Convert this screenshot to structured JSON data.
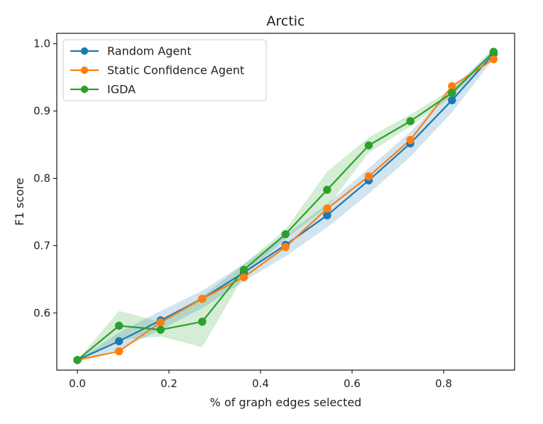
{
  "chart_data": {
    "type": "line",
    "title": "Arctic",
    "xlabel": "% of graph edges selected",
    "ylabel": "F1 score",
    "xlim": [
      -0.045,
      0.955
    ],
    "ylim": [
      0.515,
      1.0155
    ],
    "xticks": [
      0.0,
      0.2,
      0.4,
      0.6,
      0.8
    ],
    "xtick_labels": [
      "0.0",
      "0.2",
      "0.4",
      "0.6",
      "0.8"
    ],
    "yticks": [
      0.6,
      0.7,
      0.8,
      0.9,
      1.0
    ],
    "ytick_labels": [
      "0.6",
      "0.7",
      "0.8",
      "0.9",
      "1.0"
    ],
    "legend_position": "top-left",
    "grid": false,
    "x": [
      0.0,
      0.0909,
      0.1818,
      0.2727,
      0.3636,
      0.4545,
      0.5455,
      0.6364,
      0.7273,
      0.8182,
      0.9091
    ],
    "series": [
      {
        "name": "Random Agent",
        "color": "#1f77b4",
        "values": [
          0.53,
          0.558,
          0.589,
          0.621,
          0.66,
          0.701,
          0.745,
          0.797,
          0.852,
          0.916,
          0.985
        ],
        "band_lower": [
          0.53,
          0.545,
          0.575,
          0.607,
          0.647,
          0.684,
          0.727,
          0.777,
          0.832,
          0.898,
          0.978
        ],
        "band_upper": [
          0.53,
          0.571,
          0.603,
          0.633,
          0.673,
          0.716,
          0.762,
          0.815,
          0.869,
          0.932,
          0.991
        ]
      },
      {
        "name": "Static Confidence Agent",
        "color": "#ff7f0e",
        "values": [
          0.53,
          0.543,
          0.586,
          0.621,
          0.653,
          0.698,
          0.755,
          0.803,
          0.857,
          0.937,
          0.977
        ]
      },
      {
        "name": "IGDA",
        "color": "#2ca02c",
        "values": [
          0.53,
          0.581,
          0.575,
          0.587,
          0.664,
          0.717,
          0.783,
          0.849,
          0.885,
          0.927,
          0.988
        ],
        "band_lower": [
          0.53,
          0.56,
          0.565,
          0.549,
          0.655,
          0.71,
          0.757,
          0.838,
          0.877,
          0.922,
          0.983
        ],
        "band_upper": [
          0.53,
          0.603,
          0.587,
          0.625,
          0.672,
          0.724,
          0.81,
          0.861,
          0.895,
          0.933,
          0.993
        ]
      }
    ]
  }
}
